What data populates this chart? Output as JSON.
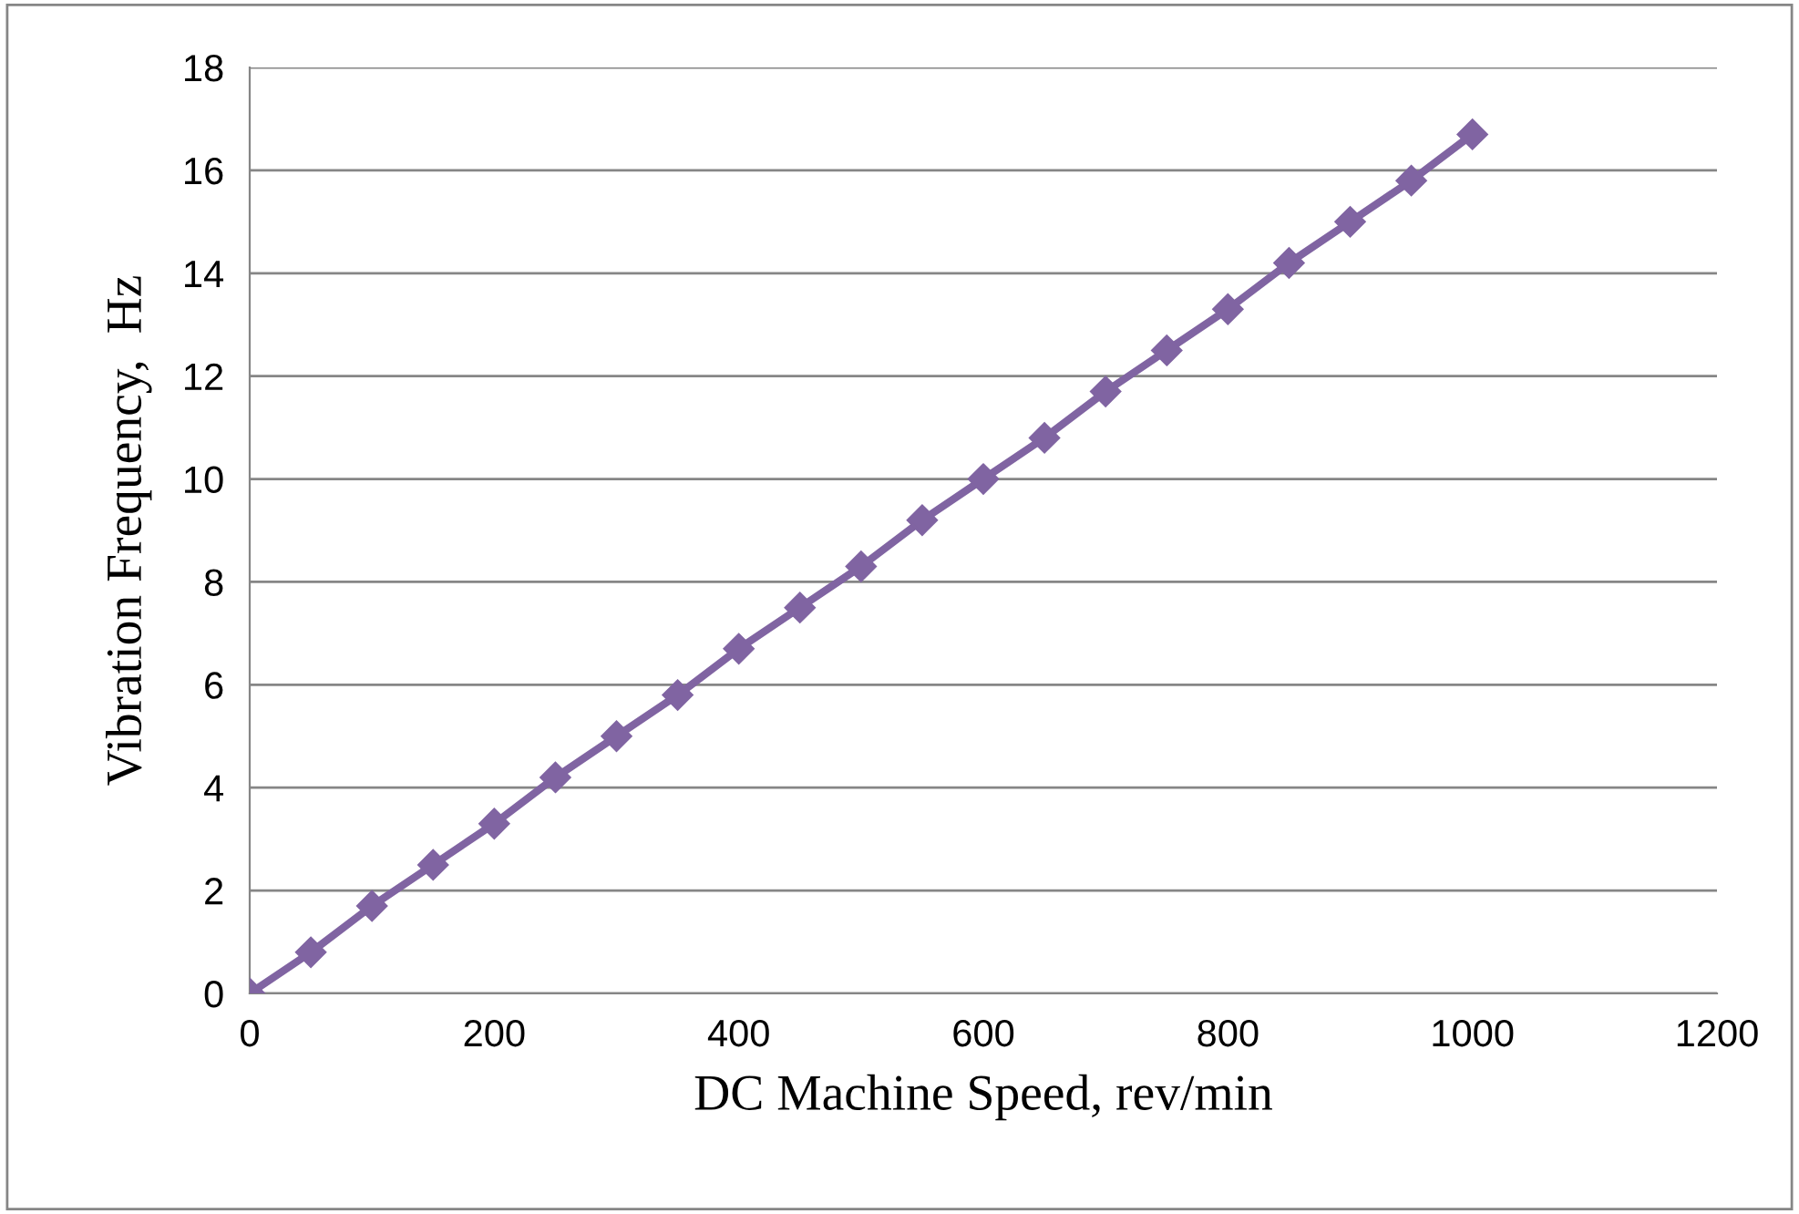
{
  "chart_data": {
    "type": "line",
    "xlabel": "DC Machine Speed, rev/min",
    "ylabel": "Vibration Frequency,  Hz",
    "x": [
      0,
      50,
      100,
      150,
      200,
      250,
      300,
      350,
      400,
      450,
      500,
      550,
      600,
      650,
      700,
      750,
      800,
      850,
      900,
      950,
      1000
    ],
    "series": [
      {
        "color": "#8064a2",
        "values": [
          0,
          0.8,
          1.7,
          2.5,
          3.3,
          4.2,
          5.0,
          5.8,
          6.7,
          7.5,
          8.3,
          9.2,
          10.0,
          10.8,
          11.7,
          12.5,
          13.3,
          14.2,
          15.0,
          15.8,
          16.7
        ]
      }
    ],
    "xlim": [
      0,
      1200
    ],
    "xticks": [
      0,
      200,
      400,
      600,
      800,
      1000,
      1200
    ],
    "ylim": [
      0,
      18
    ],
    "yticks": [
      0,
      2,
      4,
      6,
      8,
      10,
      12,
      14,
      16,
      18
    ],
    "grid": "y",
    "marker": "diamond",
    "line_style": "solid",
    "legend": false
  }
}
